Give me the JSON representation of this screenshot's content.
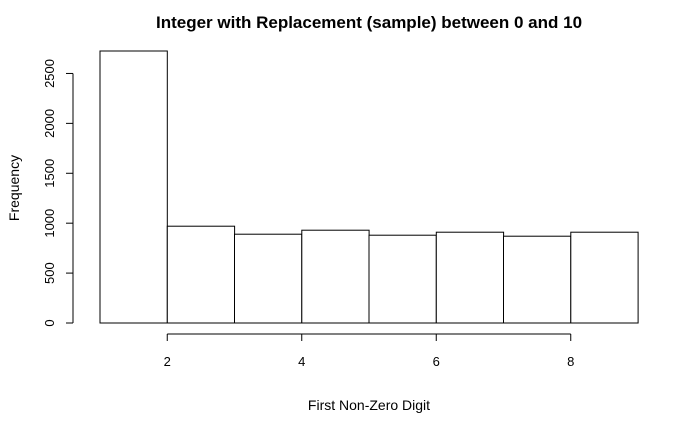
{
  "chart_data": {
    "type": "bar",
    "title": "Integer with Replacement (sample) between 0 and 10",
    "xlabel": "First Non-Zero Digit",
    "ylabel": "Frequency",
    "bins": [
      {
        "from": 1,
        "to": 2,
        "count": 2725
      },
      {
        "from": 2,
        "to": 3,
        "count": 970
      },
      {
        "from": 3,
        "to": 4,
        "count": 890
      },
      {
        "from": 4,
        "to": 5,
        "count": 930
      },
      {
        "from": 5,
        "to": 6,
        "count": 880
      },
      {
        "from": 6,
        "to": 7,
        "count": 910
      },
      {
        "from": 7,
        "to": 8,
        "count": 870
      },
      {
        "from": 8,
        "to": 9,
        "count": 910
      }
    ],
    "xlim": [
      1,
      9
    ],
    "ylim": [
      0,
      2725
    ],
    "x_ticks": [
      2,
      4,
      6,
      8
    ],
    "y_ticks": [
      0,
      500,
      1000,
      1500,
      2000,
      2500
    ],
    "grid": false,
    "legend": "none"
  }
}
